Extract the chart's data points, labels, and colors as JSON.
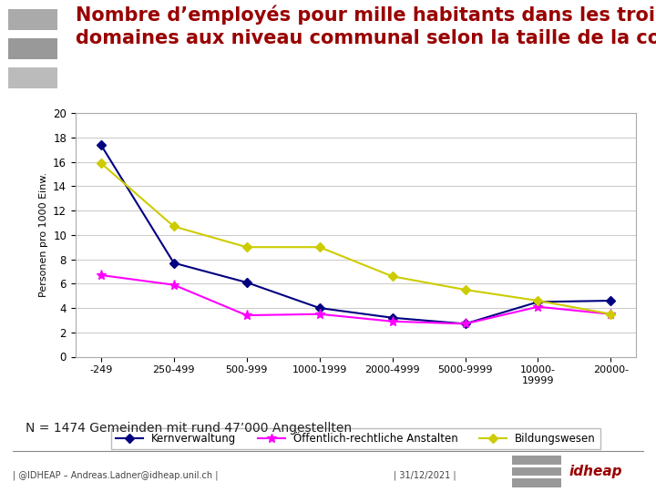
{
  "title_line1": "Nombre d’employés pour mille habitants dans les trois",
  "title_line2": "domaines aux niveau communal selon la taille de la commune",
  "title_color": "#990000",
  "title_fontsize": 15,
  "categories": [
    "-249",
    "250-499",
    "500-999",
    "1000-1999",
    "2000-4999",
    "5000-9999",
    "10000-\n19999",
    "20000-"
  ],
  "kernverwaltung": [
    17.4,
    7.7,
    6.1,
    4.0,
    3.2,
    2.7,
    4.5,
    4.6
  ],
  "oeffentlich": [
    6.7,
    5.9,
    3.4,
    3.5,
    2.9,
    2.7,
    4.1,
    3.5
  ],
  "bildungswesen": [
    15.9,
    10.7,
    9.0,
    9.0,
    6.6,
    5.5,
    4.6,
    3.5
  ],
  "kernverwaltung_color": "#000080",
  "oeffentlich_color": "#ff00ff",
  "bildungswesen_color": "#cccc00",
  "ylabel": "Personen pro 1000 Einw.",
  "ylim": [
    0,
    20
  ],
  "yticks": [
    0,
    2,
    4,
    6,
    8,
    10,
    12,
    14,
    16,
    18,
    20
  ],
  "legend_labels": [
    "Kernverwaltung",
    "Öffentlich-rechtliche Anstalten",
    "Bildungswesen"
  ],
  "note": "N = 1474 Gemeinden mit rund 47’000 Angestellten",
  "footer_left": "| @IDHEAP – Andreas.Ladner@idheap.unil.ch |",
  "footer_right": "| 31/12/2021 |",
  "bg_color": "#ffffff",
  "plot_bg_color": "#ffffff",
  "grid_color": "#cccccc",
  "marker_size": 5
}
